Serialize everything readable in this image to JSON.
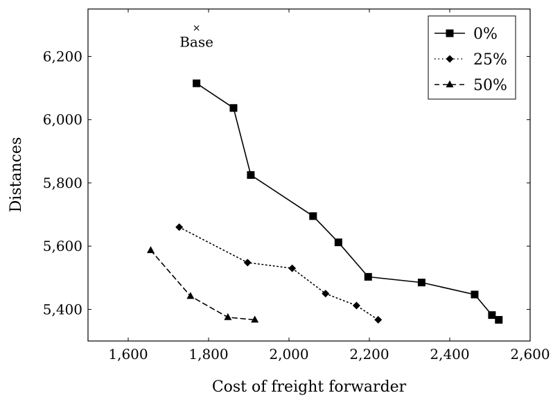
{
  "chart_data": {
    "type": "line",
    "title": "",
    "xlabel": "Cost of freight forwarder",
    "ylabel": "Distances",
    "xlim": [
      1500,
      2600
    ],
    "ylim": [
      5300,
      6350
    ],
    "xticks": [
      1600,
      1800,
      2000,
      2200,
      2400,
      2600
    ],
    "xtick_labels": [
      "1,600",
      "1,800",
      "2,000",
      "2,200",
      "2,400",
      "2,600"
    ],
    "yticks": [
      5400,
      5600,
      5800,
      6000,
      6200
    ],
    "ytick_labels": [
      "5,400",
      "5,600",
      "5,800",
      "6,000",
      "6,200"
    ],
    "grid": false,
    "legend_position": "top-right",
    "series": [
      {
        "name": "0%",
        "line_style": "solid",
        "marker": "square",
        "points": [
          [
            1770,
            6115
          ],
          [
            1862,
            6037
          ],
          [
            1905,
            5825
          ],
          [
            2060,
            5695
          ],
          [
            2123,
            5612
          ],
          [
            2197,
            5503
          ],
          [
            2330,
            5485
          ],
          [
            2462,
            5447
          ],
          [
            2505,
            5382
          ],
          [
            2522,
            5367
          ]
        ]
      },
      {
        "name": "25%",
        "line_style": "dotted",
        "marker": "diamond",
        "points": [
          [
            1727,
            5660
          ],
          [
            1897,
            5548
          ],
          [
            2008,
            5530
          ],
          [
            2091,
            5450
          ],
          [
            2168,
            5412
          ],
          [
            2222,
            5367
          ]
        ]
      },
      {
        "name": "50%",
        "line_style": "dashed",
        "marker": "triangle",
        "points": [
          [
            1656,
            5587
          ],
          [
            1755,
            5442
          ],
          [
            1848,
            5375
          ],
          [
            1915,
            5367
          ]
        ]
      }
    ],
    "annotations": [
      {
        "text": "Base",
        "marker": "cross",
        "x": 1770,
        "y": 6290
      }
    ]
  }
}
